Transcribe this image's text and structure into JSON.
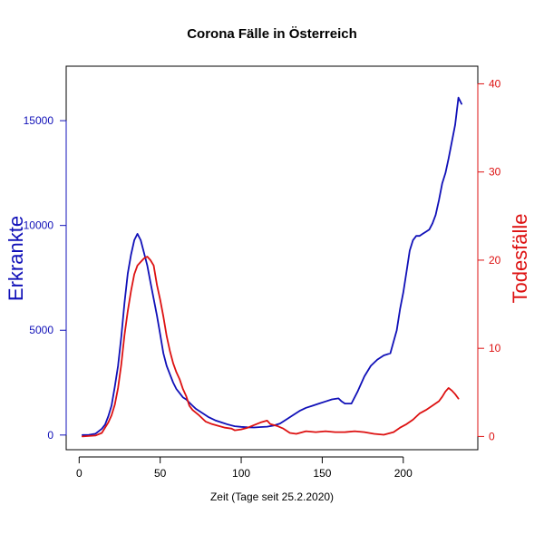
{
  "chart_data": {
    "type": "line",
    "title": "Corona Fälle in Österreich",
    "xlabel": "Zeit (Tage seit 25.2.2020)",
    "ylabel_left": "Erkrankte",
    "ylabel_right": "Todesfälle",
    "xlim": [
      -8,
      246
    ],
    "ylim_left": [
      -700,
      17600
    ],
    "ylim_right": [
      -1.5,
      42
    ],
    "x_ticks": [
      0,
      50,
      100,
      150,
      200
    ],
    "y_left_ticks": [
      0,
      5000,
      10000,
      15000
    ],
    "y_right_ticks": [
      0,
      10,
      20,
      30,
      40
    ],
    "colors": {
      "left": "#1010b8",
      "right": "#dd1111"
    },
    "grid": false,
    "series": [
      {
        "name": "Erkrankte",
        "axis": "left",
        "x": [
          2,
          6,
          10,
          14,
          16,
          18,
          20,
          22,
          24,
          26,
          28,
          30,
          32,
          34,
          36,
          38,
          40,
          42,
          44,
          46,
          48,
          50,
          52,
          54,
          56,
          58,
          60,
          62,
          64,
          66,
          68,
          70,
          72,
          76,
          80,
          84,
          88,
          92,
          96,
          100,
          104,
          108,
          112,
          116,
          120,
          124,
          128,
          132,
          136,
          140,
          144,
          148,
          152,
          156,
          160,
          162,
          164,
          168,
          172,
          176,
          180,
          184,
          188,
          192,
          196,
          198,
          200,
          202,
          204,
          206,
          208,
          210,
          212,
          214,
          216,
          218,
          220,
          222,
          224,
          226,
          228,
          230,
          232,
          234,
          236
        ],
        "values": [
          0,
          10,
          60,
          300,
          500,
          900,
          1400,
          2300,
          3300,
          4700,
          6300,
          7700,
          8600,
          9300,
          9600,
          9300,
          8700,
          8100,
          7300,
          6500,
          5700,
          4800,
          3900,
          3300,
          2900,
          2500,
          2200,
          2000,
          1800,
          1700,
          1550,
          1400,
          1250,
          1050,
          850,
          700,
          600,
          500,
          420,
          390,
          370,
          360,
          380,
          400,
          450,
          550,
          750,
          950,
          1150,
          1300,
          1400,
          1500,
          1600,
          1700,
          1750,
          1600,
          1500,
          1500,
          2100,
          2800,
          3300,
          3600,
          3800,
          3900,
          5000,
          6000,
          6800,
          7800,
          8800,
          9300,
          9500,
          9500,
          9600,
          9700,
          9800,
          10100,
          10500,
          11200,
          12000,
          12500,
          13200,
          14000,
          14800,
          16100,
          15800
        ]
      },
      {
        "name": "Todesfälle",
        "axis": "right",
        "x": [
          2,
          10,
          14,
          18,
          20,
          22,
          24,
          26,
          28,
          30,
          32,
          34,
          36,
          38,
          40,
          42,
          44,
          46,
          48,
          50,
          52,
          54,
          56,
          58,
          60,
          62,
          64,
          66,
          68,
          70,
          74,
          78,
          82,
          86,
          90,
          94,
          96,
          100,
          104,
          108,
          112,
          116,
          118,
          122,
          126,
          130,
          134,
          140,
          146,
          152,
          158,
          164,
          170,
          176,
          182,
          188,
          194,
          198,
          202,
          206,
          210,
          214,
          218,
          222,
          224,
          226,
          228,
          230,
          232,
          234
        ],
        "values": [
          0,
          0.1,
          0.4,
          1.6,
          2.4,
          3.6,
          5.5,
          8.2,
          11.5,
          14.2,
          16.5,
          18.4,
          19.4,
          19.8,
          20.2,
          20.4,
          20.0,
          19.4,
          17.2,
          15.5,
          13.6,
          11.4,
          9.7,
          8.3,
          7.3,
          6.5,
          5.4,
          4.6,
          3.5,
          3.0,
          2.4,
          1.7,
          1.4,
          1.2,
          1.0,
          0.9,
          0.7,
          0.8,
          1.0,
          1.3,
          1.6,
          1.8,
          1.4,
          1.2,
          0.9,
          0.4,
          0.3,
          0.6,
          0.5,
          0.6,
          0.5,
          0.5,
          0.6,
          0.5,
          0.3,
          0.2,
          0.5,
          1.0,
          1.4,
          1.9,
          2.6,
          3.0,
          3.5,
          4.0,
          4.5,
          5.1,
          5.5,
          5.2,
          4.8,
          4.3
        ]
      }
    ]
  }
}
